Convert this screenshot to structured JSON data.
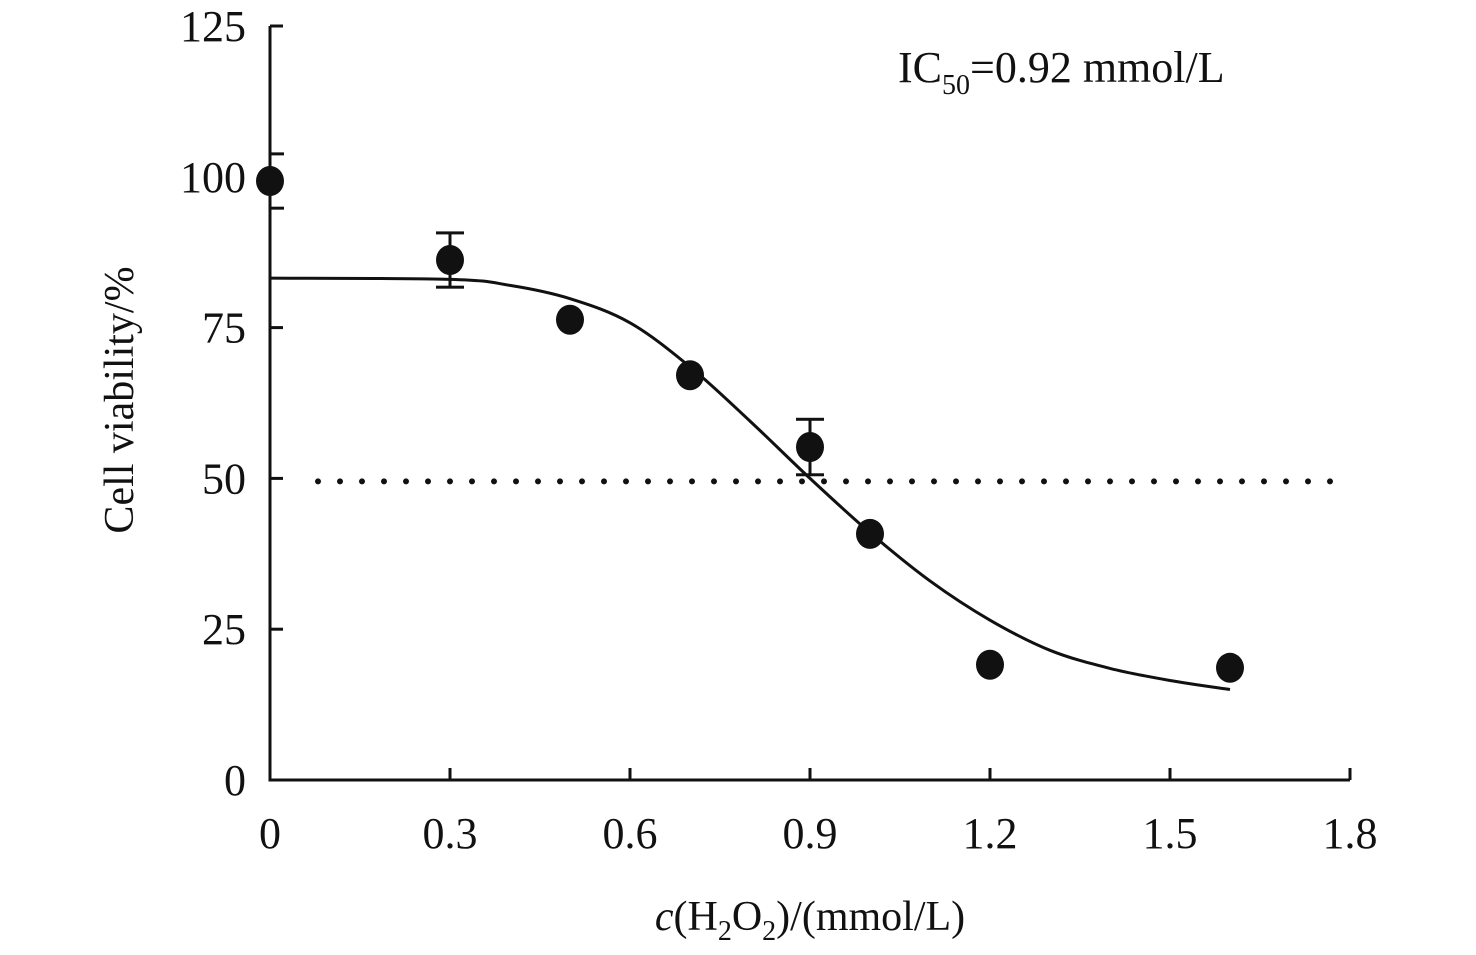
{
  "chart_data": {
    "type": "scatter",
    "title": "",
    "xlabel": {
      "italic": "c",
      "pre": "(H",
      "sub1": "2",
      "mid": "O",
      "sub2": "2",
      "post": ")/(mmol/L)"
    },
    "ylabel": "Cell viability/%",
    "xlim": [
      0,
      1.8
    ],
    "ylim": [
      0,
      125
    ],
    "xticks": [
      0,
      0.3,
      0.6,
      0.9,
      1.2,
      1.5,
      1.8
    ],
    "xtick_labels": [
      "0",
      "0.3",
      "0.6",
      "0.9",
      "1.2",
      "1.5",
      "1.8"
    ],
    "yticks": [
      0,
      25,
      50,
      75,
      100,
      125
    ],
    "ytick_labels": [
      "0",
      "25",
      "50",
      "75",
      "100",
      "125"
    ],
    "grid": false,
    "annotation": {
      "pre": "IC",
      "sub": "50",
      "post": "=0.92 mmol/L"
    },
    "reference_line": {
      "y": 49.5,
      "style": "dotted",
      "x_range": [
        0.08,
        1.79
      ]
    },
    "series": [
      {
        "name": "measured",
        "x": [
          0,
          0.3,
          0.5,
          0.7,
          0.9,
          1.0,
          1.2,
          1.6
        ],
        "y": [
          99.3,
          86.2,
          76.3,
          67.1,
          55.2,
          40.8,
          19.1,
          18.6
        ],
        "error": [
          4.5,
          4.5,
          null,
          null,
          4.6,
          null,
          null,
          null
        ]
      },
      {
        "name": "fit",
        "type": "line",
        "x": [
          0,
          0.3,
          0.4,
          0.5,
          0.6,
          0.7,
          0.8,
          0.9,
          1.0,
          1.1,
          1.2,
          1.3,
          1.4,
          1.5,
          1.6
        ],
        "y": [
          83.2,
          83.0,
          82.0,
          79.8,
          75.8,
          68.5,
          59.5,
          50.0,
          41.0,
          33.0,
          26.5,
          21.5,
          18.5,
          16.5,
          15.0
        ]
      }
    ]
  }
}
